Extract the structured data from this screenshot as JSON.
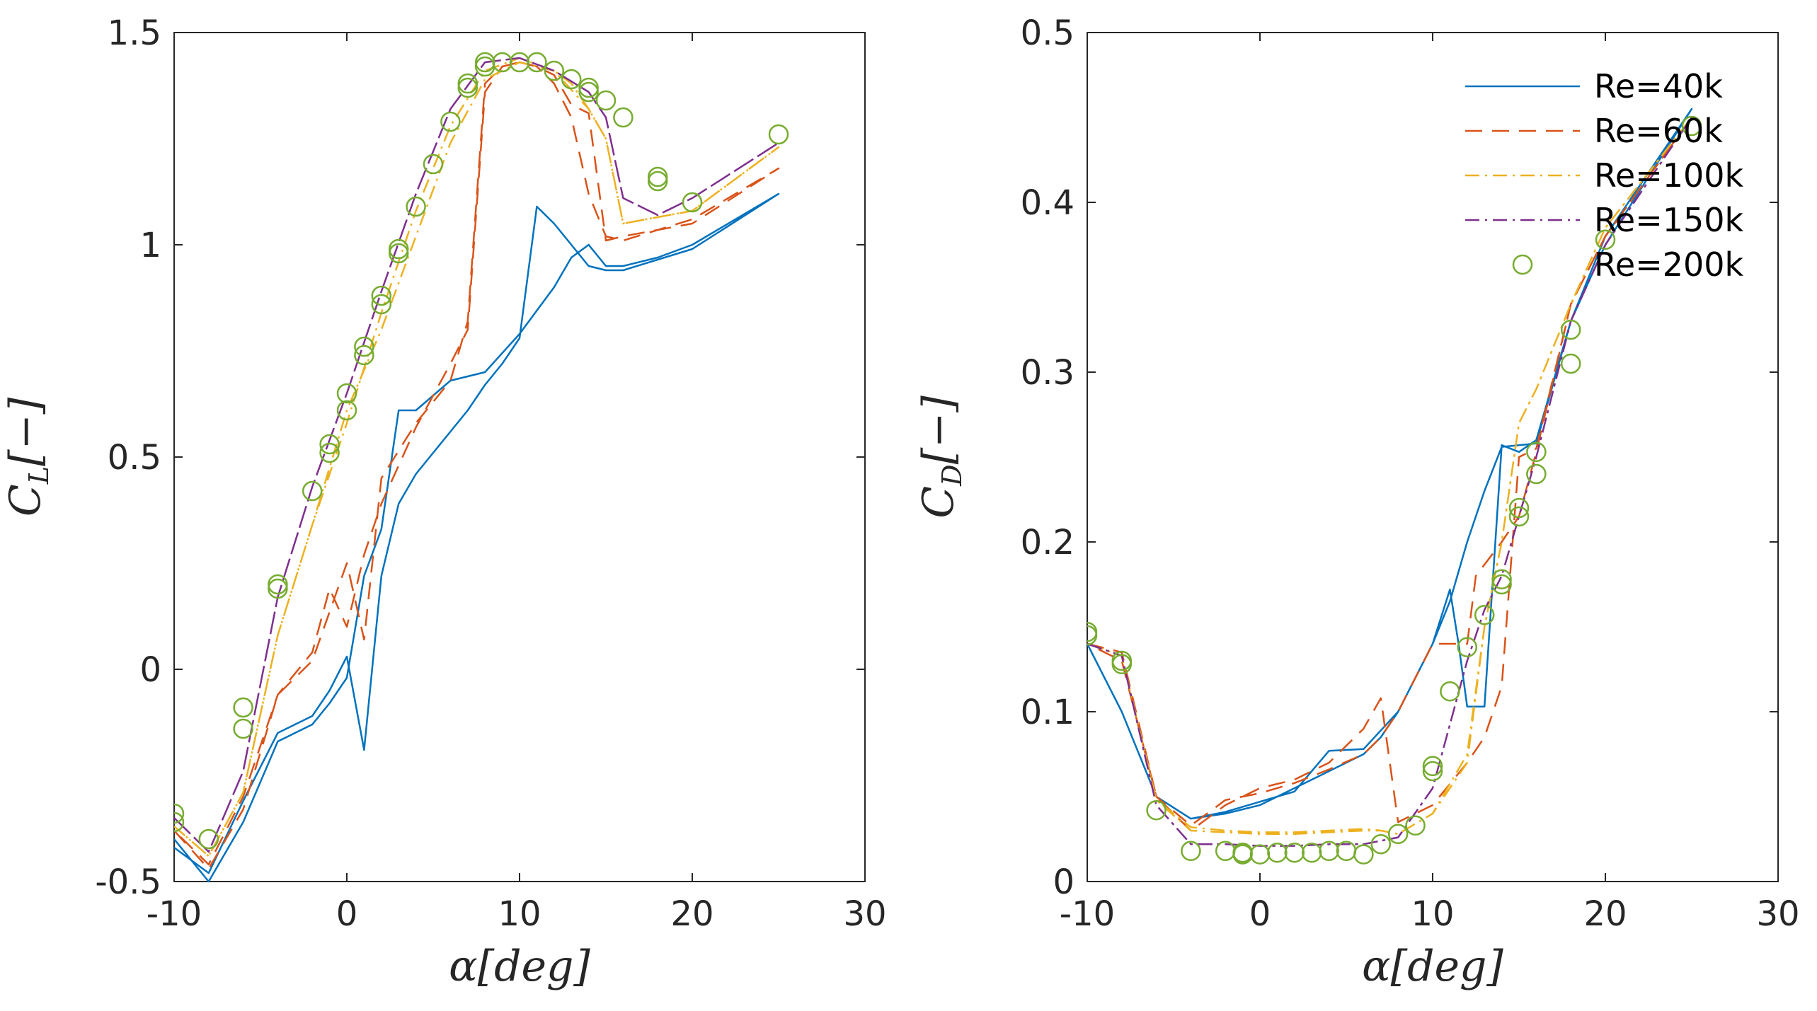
{
  "chart_data": [
    {
      "type": "line",
      "xlabel": "α[deg]",
      "ylabel": "C_L[−]",
      "ylabel_main": "C",
      "ylabel_sub": "L",
      "ylabel_tail": "[−]",
      "xlim": [
        -10,
        30
      ],
      "ylim": [
        -0.5,
        1.5
      ],
      "xticks": [
        -10,
        0,
        10,
        20,
        30
      ],
      "xtick_labels": [
        "-10",
        "0",
        "10",
        "20",
        "30"
      ],
      "yticks": [
        -0.5,
        0,
        0.5,
        1,
        1.5
      ],
      "ytick_labels": [
        "-0.5",
        "0",
        "0.5",
        "1",
        "1.5"
      ],
      "series": [
        {
          "name": "Re=40k",
          "x": [
            -10,
            -8,
            -6,
            -4,
            -2,
            -1,
            0,
            1,
            2,
            3,
            4,
            6,
            8,
            10,
            12,
            13,
            14,
            15,
            16,
            18,
            20,
            25,
            20,
            16,
            15,
            14,
            12,
            11,
            10,
            9,
            8,
            7,
            6,
            5,
            4,
            3,
            2,
            1,
            0,
            -1,
            -2,
            -4,
            -6,
            -8,
            -10
          ],
          "y": [
            -0.4,
            -0.5,
            -0.36,
            -0.17,
            -0.13,
            -0.08,
            -0.02,
            0.22,
            0.33,
            0.61,
            0.61,
            0.68,
            0.7,
            0.79,
            0.9,
            0.97,
            1.0,
            0.95,
            0.95,
            0.97,
            1.0,
            1.12,
            0.99,
            0.94,
            0.94,
            0.95,
            1.05,
            1.09,
            0.78,
            0.72,
            0.67,
            0.61,
            0.56,
            0.51,
            0.46,
            0.39,
            0.22,
            -0.19,
            0.03,
            -0.05,
            -0.11,
            -0.15,
            -0.31,
            -0.48,
            -0.42
          ]
        },
        {
          "name": "Re=60k",
          "x": [
            -10,
            -8,
            -6,
            -4,
            -2,
            0,
            1,
            2,
            4,
            6,
            7,
            8,
            9,
            10,
            11,
            12,
            13,
            14,
            15,
            16,
            20,
            25,
            20,
            16,
            15,
            14,
            13,
            12,
            11,
            10,
            9,
            8,
            7,
            6,
            4,
            2,
            1,
            0,
            -1,
            -2,
            -4,
            -6,
            -8,
            -10
          ],
          "y": [
            -0.38,
            -0.47,
            -0.33,
            -0.06,
            0.02,
            0.25,
            0.07,
            0.45,
            0.58,
            0.68,
            0.82,
            1.38,
            1.42,
            1.43,
            1.42,
            1.38,
            1.3,
            1.12,
            1.02,
            1.01,
            1.06,
            1.18,
            1.05,
            1.02,
            1.01,
            1.31,
            1.33,
            1.4,
            1.42,
            1.43,
            1.42,
            1.36,
            0.8,
            0.72,
            0.57,
            0.39,
            0.27,
            0.1,
            0.19,
            0.04,
            -0.06,
            -0.3,
            -0.46,
            -0.38
          ]
        },
        {
          "name": "Re=100k",
          "x": [
            -10,
            -8,
            -6,
            -4,
            -2,
            0,
            2,
            4,
            6,
            8,
            10,
            12,
            13,
            14,
            15,
            16,
            20,
            25,
            20,
            16,
            15,
            14,
            12,
            10,
            8,
            6,
            4,
            2,
            0,
            -2,
            -4,
            -6,
            -8,
            -10
          ],
          "y": [
            -0.37,
            -0.44,
            -0.29,
            0.08,
            0.34,
            0.58,
            0.84,
            1.08,
            1.28,
            1.41,
            1.44,
            1.41,
            1.38,
            1.32,
            1.25,
            1.05,
            1.08,
            1.23,
            1.08,
            1.05,
            1.25,
            1.32,
            1.41,
            1.43,
            1.39,
            1.24,
            1.02,
            0.8,
            0.61,
            0.34,
            0.08,
            -0.29,
            -0.44,
            -0.37
          ]
        },
        {
          "name": "Re=150k",
          "x": [
            -10,
            -8,
            -6,
            -4,
            -2,
            0,
            2,
            4,
            6,
            8,
            10,
            12,
            14,
            15,
            16,
            18,
            20,
            25,
            20,
            18,
            16,
            15,
            14,
            12,
            10,
            8,
            6,
            4,
            2,
            0,
            -2,
            -4,
            -6,
            -8,
            -10
          ],
          "y": [
            -0.35,
            -0.43,
            -0.24,
            0.17,
            0.43,
            0.65,
            0.89,
            1.12,
            1.32,
            1.43,
            1.44,
            1.41,
            1.36,
            1.3,
            1.11,
            1.07,
            1.11,
            1.24,
            1.11,
            1.07,
            1.11,
            1.3,
            1.36,
            1.41,
            1.44,
            1.43,
            1.32,
            1.12,
            0.89,
            0.65,
            0.43,
            0.17,
            -0.24,
            -0.43,
            -0.35
          ]
        },
        {
          "name": "Re=200k",
          "marker": "circle",
          "x": [
            -10,
            -10,
            -8,
            -6,
            -6,
            -4,
            -4,
            -2,
            -1,
            -1,
            0,
            0,
            1,
            1,
            2,
            2,
            3,
            3,
            4,
            5,
            6,
            7,
            7,
            8,
            8,
            9,
            10,
            11,
            12,
            13,
            14,
            14,
            15,
            16,
            18,
            18,
            20,
            25
          ],
          "y": [
            -0.34,
            -0.36,
            -0.4,
            -0.09,
            -0.14,
            0.19,
            0.2,
            0.42,
            0.51,
            0.53,
            0.61,
            0.65,
            0.74,
            0.76,
            0.86,
            0.88,
            0.98,
            0.99,
            1.09,
            1.19,
            1.29,
            1.37,
            1.38,
            1.42,
            1.43,
            1.43,
            1.43,
            1.43,
            1.41,
            1.39,
            1.36,
            1.37,
            1.34,
            1.3,
            1.15,
            1.16,
            1.1,
            1.26
          ]
        }
      ]
    },
    {
      "type": "line",
      "xlabel": "α[deg]",
      "ylabel": "C_D[−]",
      "ylabel_main": "C",
      "ylabel_sub": "D",
      "ylabel_tail": "[−]",
      "xlim": [
        -10,
        30
      ],
      "ylim": [
        0,
        0.5
      ],
      "xticks": [
        -10,
        0,
        10,
        20,
        30
      ],
      "xtick_labels": [
        "-10",
        "0",
        "10",
        "20",
        "30"
      ],
      "yticks": [
        0,
        0.1,
        0.2,
        0.3,
        0.4,
        0.5
      ],
      "ytick_labels": [
        "0",
        "0.1",
        "0.2",
        "0.3",
        "0.4",
        "0.5"
      ],
      "legend": {
        "position": "top-right",
        "entries": [
          "Re=40k",
          "Re=60k",
          "Re=100k",
          "Re=150k",
          "Re=200k"
        ]
      },
      "series": [
        {
          "name": "Re=40k",
          "x": [
            -10,
            -8,
            -6,
            -4,
            -2,
            0,
            1,
            2,
            3,
            4,
            5,
            6,
            7,
            8,
            10,
            11,
            11.5,
            12,
            13,
            14,
            15,
            16,
            18,
            20,
            25,
            20,
            18,
            16,
            15,
            14,
            13,
            12,
            11,
            10,
            8,
            6,
            4,
            2,
            0,
            -2,
            -4,
            -6,
            -8,
            -10
          ],
          "y": [
            0.14,
            0.1,
            0.05,
            0.037,
            0.04,
            0.045,
            0.05,
            0.055,
            0.06,
            0.065,
            0.07,
            0.075,
            0.085,
            0.1,
            0.14,
            0.172,
            0.14,
            0.103,
            0.103,
            0.257,
            0.253,
            0.26,
            0.33,
            0.38,
            0.455,
            0.375,
            0.33,
            0.258,
            0.257,
            0.256,
            0.23,
            0.2,
            0.165,
            0.14,
            0.1,
            0.078,
            0.077,
            0.053,
            0.047,
            0.041,
            0.037,
            0.05,
            0.1,
            0.14
          ]
        },
        {
          "name": "Re=60k",
          "x": [
            -10,
            -8,
            -6,
            -4,
            -2,
            0,
            2,
            4,
            6,
            7,
            8,
            10,
            12,
            13,
            14,
            15,
            16,
            18,
            20,
            25,
            20,
            18,
            16,
            15,
            14,
            12.5,
            12,
            10,
            9,
            8,
            7,
            6,
            4,
            2,
            0,
            -2,
            -4,
            -6,
            -8,
            -10
          ],
          "y": [
            0.14,
            0.135,
            0.05,
            0.03,
            0.045,
            0.055,
            0.06,
            0.07,
            0.09,
            0.108,
            0.035,
            0.045,
            0.07,
            0.085,
            0.115,
            0.25,
            0.255,
            0.34,
            0.38,
            0.45,
            0.38,
            0.34,
            0.253,
            0.215,
            0.2,
            0.18,
            0.14,
            0.14,
            0.12,
            0.1,
            0.085,
            0.075,
            0.066,
            0.058,
            0.052,
            0.048,
            0.033,
            0.05,
            0.13,
            0.14
          ]
        },
        {
          "name": "Re=100k",
          "x": [
            -10,
            -8,
            -6,
            -4,
            -2,
            0,
            2,
            4,
            6,
            7,
            8,
            10,
            12,
            13,
            14,
            15,
            16,
            18,
            20,
            25,
            20,
            18,
            16,
            15,
            14,
            13,
            12,
            10,
            8,
            7,
            6,
            4,
            2,
            0,
            -2,
            -4,
            -6,
            -8,
            -10
          ],
          "y": [
            0.14,
            0.133,
            0.048,
            0.032,
            0.03,
            0.029,
            0.029,
            0.03,
            0.031,
            0.03,
            0.028,
            0.04,
            0.075,
            0.15,
            0.2,
            0.27,
            0.29,
            0.34,
            0.385,
            0.45,
            0.385,
            0.34,
            0.29,
            0.27,
            0.2,
            0.15,
            0.07,
            0.04,
            0.028,
            0.03,
            0.03,
            0.029,
            0.028,
            0.028,
            0.029,
            0.03,
            0.048,
            0.133,
            0.14
          ]
        },
        {
          "name": "Re=150k",
          "x": [
            -10,
            -8,
            -6,
            -4,
            -2,
            0,
            2,
            4,
            6,
            8,
            10,
            12,
            13,
            14,
            15,
            16,
            18,
            20,
            25,
            20,
            18,
            16,
            15,
            14,
            13,
            12,
            10,
            8,
            6,
            4,
            2,
            0,
            -2,
            -4,
            -6,
            -8,
            -10
          ],
          "y": [
            0.14,
            0.133,
            0.045,
            0.022,
            0.022,
            0.021,
            0.021,
            0.022,
            0.022,
            0.026,
            0.055,
            0.13,
            0.16,
            0.18,
            0.215,
            0.25,
            0.33,
            0.375,
            0.45,
            0.375,
            0.33,
            0.25,
            0.215,
            0.18,
            0.16,
            0.13,
            0.055,
            0.026,
            0.022,
            0.022,
            0.021,
            0.021,
            0.022,
            0.022,
            0.045,
            0.133,
            0.14
          ]
        },
        {
          "name": "Re=200k",
          "marker": "circle",
          "x": [
            -10,
            -10,
            -8,
            -8,
            -6,
            -4,
            -2,
            -1,
            -1,
            0,
            1,
            2,
            3,
            4,
            5,
            6,
            7,
            8,
            9,
            10,
            10,
            11,
            12,
            13,
            14,
            14,
            15,
            15,
            16,
            16,
            18,
            18,
            20,
            25
          ],
          "y": [
            0.145,
            0.147,
            0.128,
            0.13,
            0.042,
            0.018,
            0.018,
            0.016,
            0.017,
            0.016,
            0.017,
            0.017,
            0.017,
            0.018,
            0.018,
            0.016,
            0.022,
            0.028,
            0.033,
            0.065,
            0.068,
            0.112,
            0.138,
            0.157,
            0.175,
            0.178,
            0.215,
            0.22,
            0.24,
            0.253,
            0.305,
            0.325,
            0.378,
            0.445
          ]
        }
      ]
    }
  ],
  "colors": {
    "Re=40k": "#0072BD",
    "Re=60k": "#D95319",
    "Re=100k": "#EDB120",
    "Re=150k": "#7E2F8E",
    "Re=200k": "#77AC30",
    "axes": "#262626"
  },
  "dash_styles": {
    "Re=40k": "",
    "Re=60k": "24 14",
    "Re=100k": "20 8 3 8",
    "Re=150k": "20 8 3 8",
    "Re=200k": "none"
  }
}
